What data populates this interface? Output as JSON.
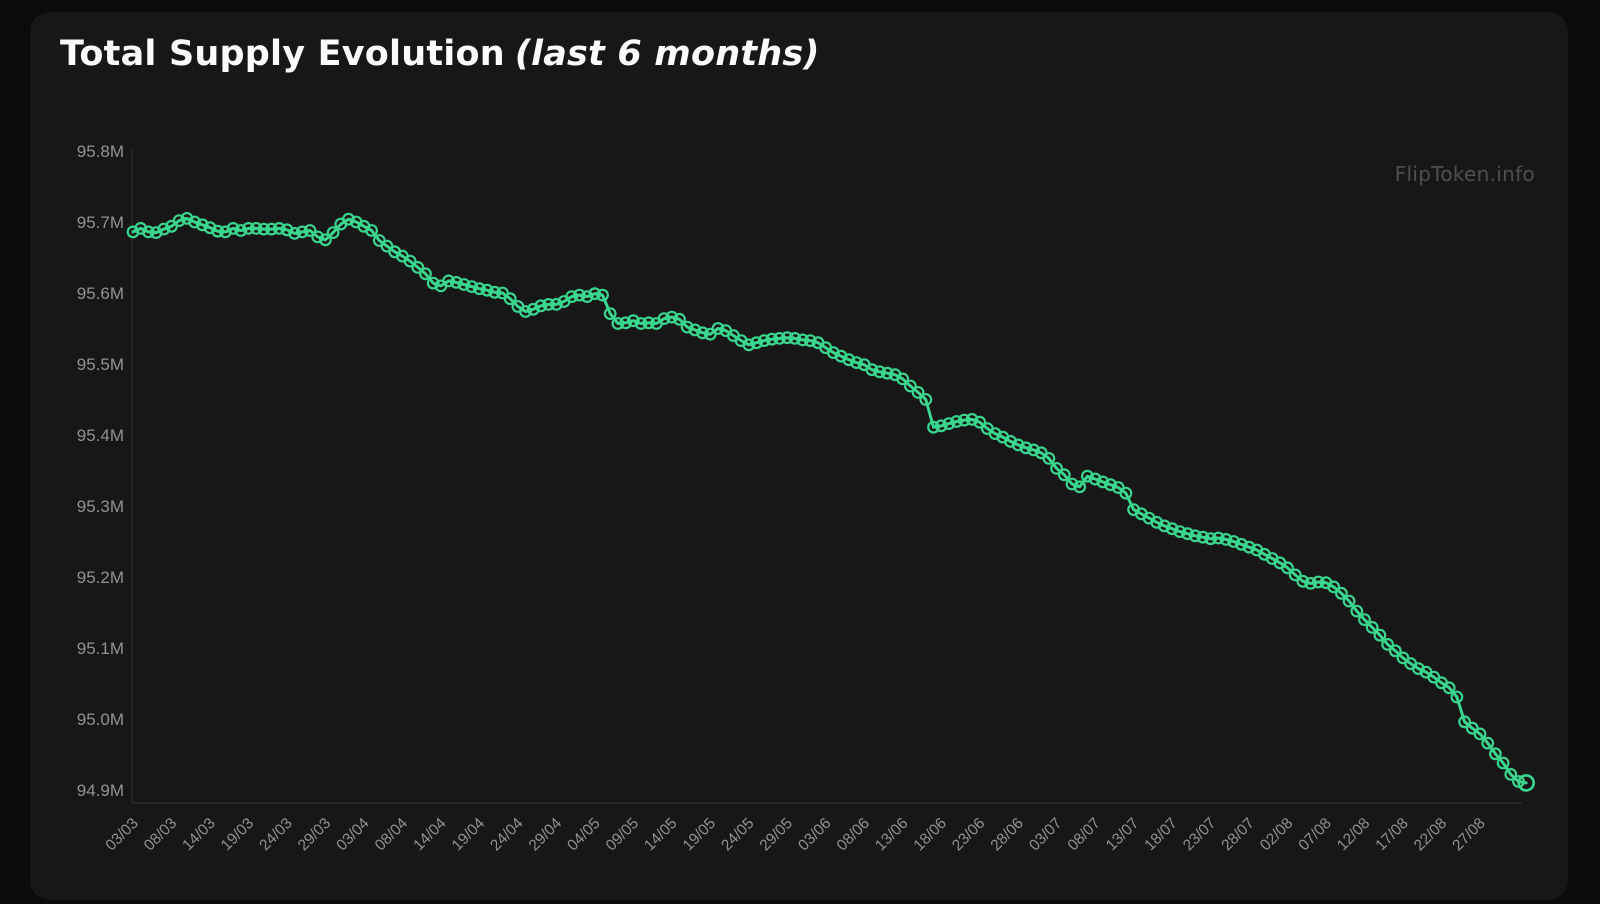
{
  "card": {
    "title_main": "Total Supply Evolution",
    "title_suffix": "(last 6 months)",
    "watermark": "FlipToken.info"
  },
  "theme": {
    "page_bg": "#0b0b0b",
    "card_bg": "#171717",
    "accent_green": "#3bd68e",
    "axis_line": "#2f2f2f",
    "grid_dot": "#232323",
    "tick_label": "#929292",
    "title_color": "#fafafa",
    "watermark_color": "#4f4f4f"
  },
  "chart_data": {
    "type": "line",
    "title": "Total Supply Evolution (last 6 months)",
    "ylabel": "",
    "xlabel": "",
    "unit": "millions of tokens",
    "ylim": [
      94.9,
      95.8
    ],
    "grid": "dotted",
    "legend": "none",
    "marker": "ring",
    "y_tick_labels": [
      "95.8M",
      "95.7M",
      "95.6M",
      "95.5M",
      "95.4M",
      "95.3M",
      "95.2M",
      "95.1M",
      "95.0M",
      "94.9M"
    ],
    "x_tick_every": 5,
    "x_tick_labels": [
      "03/03",
      "08/03",
      "14/03",
      "19/03",
      "24/03",
      "29/03",
      "03/04",
      "08/04",
      "14/04",
      "19/04",
      "24/04",
      "29/04",
      "04/05",
      "09/05",
      "14/05",
      "19/05",
      "24/05",
      "29/05",
      "03/06",
      "08/06",
      "13/06",
      "18/06",
      "23/06",
      "28/06",
      "03/07",
      "08/07",
      "13/07",
      "18/07",
      "23/07",
      "28/07",
      "02/08",
      "07/08",
      "12/08",
      "17/08",
      "22/08",
      "27/08"
    ],
    "series": [
      {
        "name": "Total Supply",
        "color": "#3bd68e",
        "values": [
          95.686,
          95.691,
          95.686,
          95.685,
          95.69,
          95.694,
          95.702,
          95.705,
          95.7,
          95.696,
          95.692,
          95.687,
          95.686,
          95.691,
          95.688,
          95.691,
          95.691,
          95.69,
          95.69,
          95.691,
          95.689,
          95.684,
          95.686,
          95.688,
          95.679,
          95.675,
          95.685,
          95.697,
          95.704,
          95.7,
          95.694,
          95.688,
          95.674,
          95.666,
          95.658,
          95.652,
          95.645,
          95.636,
          95.627,
          95.614,
          95.61,
          95.617,
          95.615,
          95.612,
          95.609,
          95.606,
          95.604,
          95.601,
          95.6,
          95.592,
          95.581,
          95.574,
          95.577,
          95.582,
          95.584,
          95.584,
          95.588,
          95.595,
          95.597,
          95.595,
          95.599,
          95.597,
          95.571,
          95.557,
          95.558,
          95.561,
          95.557,
          95.558,
          95.557,
          95.564,
          95.566,
          95.563,
          95.552,
          95.548,
          95.544,
          95.542,
          95.55,
          95.547,
          95.54,
          95.533,
          95.527,
          95.53,
          95.533,
          95.535,
          95.536,
          95.537,
          95.536,
          95.534,
          95.533,
          95.53,
          95.523,
          95.516,
          95.511,
          95.506,
          95.502,
          95.499,
          95.492,
          95.489,
          95.487,
          95.485,
          95.479,
          95.469,
          95.46,
          95.45,
          95.411,
          95.413,
          95.416,
          95.419,
          95.421,
          95.422,
          95.418,
          95.409,
          95.402,
          95.397,
          95.391,
          95.386,
          95.382,
          95.379,
          95.375,
          95.367,
          95.353,
          95.344,
          95.331,
          95.327,
          95.342,
          95.338,
          95.334,
          95.33,
          95.326,
          95.318,
          95.295,
          95.289,
          95.283,
          95.277,
          95.272,
          95.268,
          95.264,
          95.261,
          95.258,
          95.256,
          95.254,
          95.255,
          95.253,
          95.25,
          95.246,
          95.242,
          95.238,
          95.232,
          95.226,
          95.22,
          95.213,
          95.203,
          95.194,
          95.191,
          95.193,
          95.192,
          95.186,
          95.177,
          95.166,
          95.152,
          95.14,
          95.129,
          95.118,
          95.105,
          95.096,
          95.086,
          95.078,
          95.071,
          95.066,
          95.059,
          95.051,
          95.044,
          95.031,
          94.996,
          94.987,
          94.979,
          94.966,
          94.951,
          94.938,
          94.922,
          94.912,
          94.91
        ]
      }
    ]
  }
}
